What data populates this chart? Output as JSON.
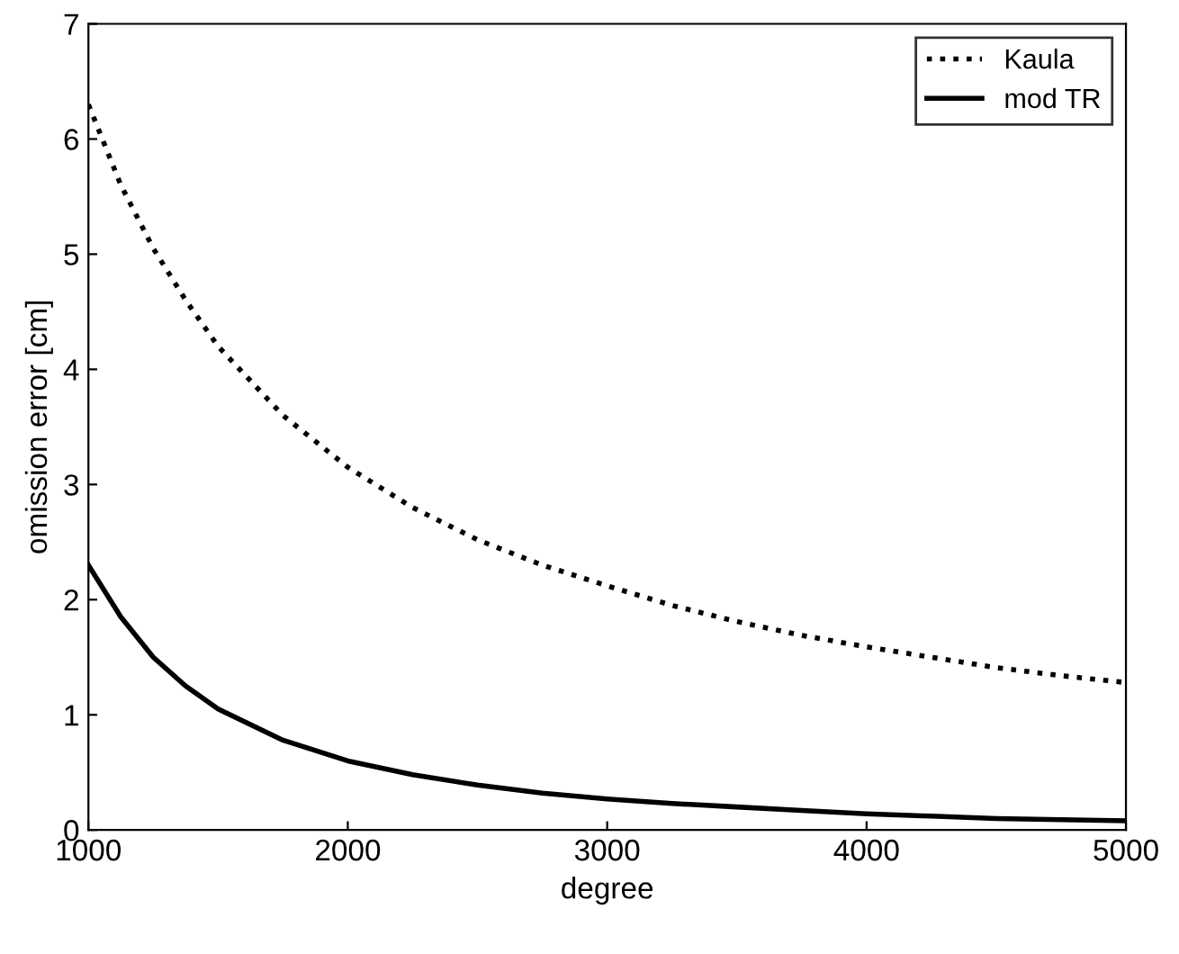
{
  "chart_data": {
    "type": "line",
    "xlabel": "degree",
    "ylabel": "omission error [cm]",
    "x": [
      1000,
      1125,
      1250,
      1375,
      1500,
      1750,
      2000,
      2250,
      2500,
      2750,
      3000,
      3250,
      3500,
      3750,
      4000,
      4250,
      4500,
      4750,
      5000
    ],
    "series": [
      {
        "name": "Kaula",
        "color": "#000000",
        "line_style": "dotted",
        "values": [
          6.3,
          5.6,
          5.05,
          4.6,
          4.2,
          3.6,
          3.15,
          2.8,
          2.52,
          2.3,
          2.12,
          1.95,
          1.81,
          1.69,
          1.59,
          1.5,
          1.41,
          1.34,
          1.28
        ]
      },
      {
        "name": "mod TR",
        "color": "#000000",
        "line_style": "solid",
        "values": [
          2.3,
          1.85,
          1.5,
          1.25,
          1.05,
          0.78,
          0.6,
          0.48,
          0.39,
          0.32,
          0.27,
          0.23,
          0.2,
          0.17,
          0.14,
          0.12,
          0.1,
          0.09,
          0.08
        ]
      }
    ],
    "xlim": [
      1000,
      5000
    ],
    "xticks": [
      1000,
      2000,
      3000,
      4000,
      5000
    ],
    "ylim": [
      0,
      7
    ],
    "yticks": [
      0,
      1,
      2,
      3,
      4,
      5,
      6,
      7
    ],
    "legend": "top right",
    "grid": false
  }
}
